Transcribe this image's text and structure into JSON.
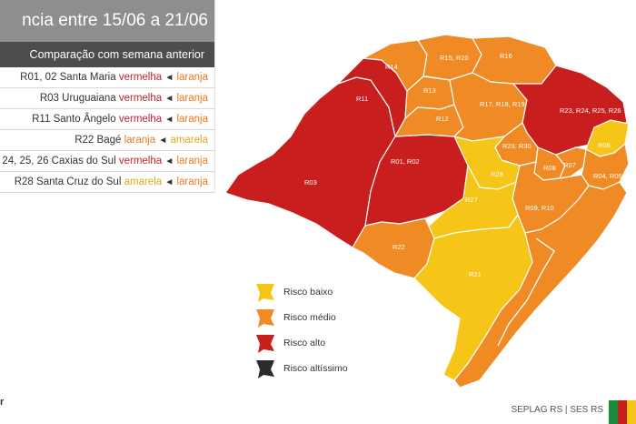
{
  "header": {
    "title": "ncia entre 15/06 a 21/06",
    "subtitle": "Comparação com semana anterior"
  },
  "changes": [
    {
      "region": "R01, 02",
      "name": "Santa Maria",
      "from": "vermelha",
      "to": "laranja",
      "from_color": "red",
      "to_color": "orange"
    },
    {
      "region": "R03",
      "name": "Uruguaiana",
      "from": "vermelha",
      "to": "laranja",
      "from_color": "red",
      "to_color": "orange"
    },
    {
      "region": "R11",
      "name": "Santo Ângelo",
      "from": "vermelha",
      "to": "laranja",
      "from_color": "red",
      "to_color": "orange"
    },
    {
      "region": "R22",
      "name": "Bagé",
      "from": "laranja",
      "to": "amarela",
      "from_color": "orange",
      "to_color": "yellow"
    },
    {
      "region": "24, 25, 26",
      "name": "Caxias do Sul",
      "from": "vermelha",
      "to": "laranja",
      "from_color": "red",
      "to_color": "orange"
    },
    {
      "region": "R28",
      "name": "Santa Cruz do Sul",
      "from": "amarela",
      "to": "laranja",
      "from_color": "yellow",
      "to_color": "orange"
    }
  ],
  "arrow_glyph": "◄",
  "map_regions": [
    {
      "id": "R14",
      "label": "R14",
      "risk": "orange"
    },
    {
      "id": "R15R20",
      "label": "R15, R20",
      "risk": "orange"
    },
    {
      "id": "R16",
      "label": "R16",
      "risk": "orange"
    },
    {
      "id": "R13",
      "label": "R13",
      "risk": "orange"
    },
    {
      "id": "R12",
      "label": "R12",
      "risk": "orange"
    },
    {
      "id": "R17R18R19",
      "label": "R17, R18, R19",
      "risk": "orange"
    },
    {
      "id": "R11",
      "label": "R11",
      "risk": "red"
    },
    {
      "id": "R23",
      "label": "R23, R24, R25, R26",
      "risk": "red"
    },
    {
      "id": "R06",
      "label": "R06",
      "risk": "yellow"
    },
    {
      "id": "R29R30",
      "label": "R29, R30",
      "risk": "orange"
    },
    {
      "id": "R01R02",
      "label": "R01, R02",
      "risk": "red"
    },
    {
      "id": "R03",
      "label": "R03",
      "risk": "red"
    },
    {
      "id": "R28",
      "label": "R28",
      "risk": "yellow"
    },
    {
      "id": "R08",
      "label": "R08",
      "risk": "orange"
    },
    {
      "id": "R07",
      "label": "R07",
      "risk": "orange"
    },
    {
      "id": "R04R05",
      "label": "R04, R05",
      "risk": "orange"
    },
    {
      "id": "R27",
      "label": "R27",
      "risk": "yellow"
    },
    {
      "id": "R09R10",
      "label": "R09, R10",
      "risk": "orange"
    },
    {
      "id": "R22",
      "label": "R22",
      "risk": "orange"
    },
    {
      "id": "R21",
      "label": "R21",
      "risk": "yellow"
    }
  ],
  "legend": [
    {
      "label": "Risco baixo",
      "color": "#f5c518"
    },
    {
      "label": "Risco médio",
      "color": "#f08a24"
    },
    {
      "label": "Risco alto",
      "color": "#c81e1e"
    },
    {
      "label": "Risco altíssimo",
      "color": "#2b2b2b"
    }
  ],
  "colors": {
    "red": "#c81e1e",
    "orange": "#f08a24",
    "yellow": "#f5c518",
    "black": "#2b2b2b"
  },
  "footer": {
    "source": "SEPLAG RS | SES RS",
    "left_fragment": "r"
  }
}
